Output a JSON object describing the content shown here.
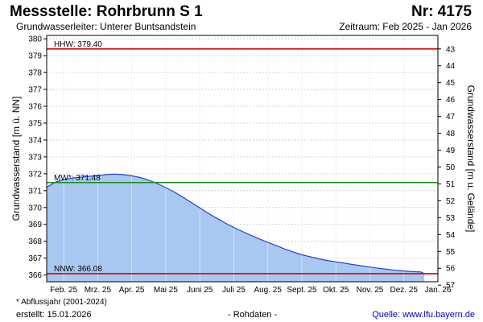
{
  "header": {
    "title": "Messstelle: Rohrbrunn S 1",
    "number": "Nr: 4175",
    "aquifer": "Grundwasserleiter:   Unterer Buntsandstein",
    "period": "Zeitraum: Feb 2025 - Jan 2026"
  },
  "footer": {
    "footnote": "* Abflussjahr (2001-2024)",
    "created": "erstellt:  15.01.2026",
    "raw": "- Rohdaten -",
    "source": "Quelle:  www.lfu.bayern.de"
  },
  "colors": {
    "fill": "#a8c8f0",
    "line": "#2a3fd0",
    "hhw_nnw": "#e00000",
    "mw": "#1a8a1a",
    "grid": "#c8c8c8"
  },
  "chart_data": {
    "type": "area",
    "ylabel": "Grundwasserstand [m ü. NN]",
    "ylabel_right": "Grundwasserstand [m u. Gelände]",
    "ylim": [
      365.6,
      380.2
    ],
    "yticks": [
      366,
      367,
      368,
      369,
      370,
      371,
      372,
      373,
      374,
      375,
      376,
      377,
      378,
      379,
      380
    ],
    "yticks_right": [
      43,
      44,
      45,
      46,
      47,
      48,
      49,
      50,
      51,
      52,
      53,
      54,
      55,
      56,
      57
    ],
    "xlim": [
      0,
      11.5
    ],
    "xtick_labels": [
      "Feb. 25",
      "Mrz. 25",
      "Apr. 25",
      "Mai 25",
      "Juni 25",
      "Juli 25",
      "Aug. 25",
      "Sept. 25",
      "Okt. 25",
      "Nov. 25",
      "Dez. 25",
      "Jan. 26"
    ],
    "grid": true,
    "reference_lines": [
      {
        "label": "HHW: 379.40",
        "value": 379.4,
        "color": "#e00000"
      },
      {
        "label": "MW*: 371.48",
        "value": 371.48,
        "color": "#1a8a1a"
      },
      {
        "label": "NNW: 366.08",
        "value": 366.08,
        "color": "#e00000"
      }
    ],
    "series": [
      {
        "x": [
          0,
          0.25,
          0.5,
          0.75,
          1.0,
          1.25,
          1.5,
          1.75,
          2.0,
          2.25,
          2.5,
          2.75,
          3.0,
          3.25,
          3.5,
          3.75,
          4.0,
          4.25,
          4.5,
          4.75,
          5.0,
          5.25,
          5.5,
          5.75,
          6.0,
          6.25,
          6.5,
          6.75,
          7.0,
          7.25,
          7.5,
          7.75,
          8.0,
          8.25,
          8.5,
          8.75,
          9.0,
          9.25,
          9.5,
          9.75,
          10.0,
          10.25,
          10.5,
          10.75,
          11.0,
          11.1
        ],
        "values": [
          371.2,
          371.5,
          371.65,
          371.75,
          371.8,
          371.85,
          371.9,
          371.95,
          371.98,
          371.95,
          371.88,
          371.78,
          371.62,
          371.42,
          371.18,
          370.92,
          370.62,
          370.3,
          369.98,
          369.66,
          369.36,
          369.08,
          368.82,
          368.58,
          368.36,
          368.14,
          367.94,
          367.74,
          367.54,
          367.36,
          367.2,
          367.08,
          366.96,
          366.86,
          366.78,
          366.7,
          366.62,
          366.55,
          366.47,
          366.4,
          366.34,
          366.28,
          366.24,
          366.2,
          366.18,
          366.08
        ]
      }
    ]
  }
}
